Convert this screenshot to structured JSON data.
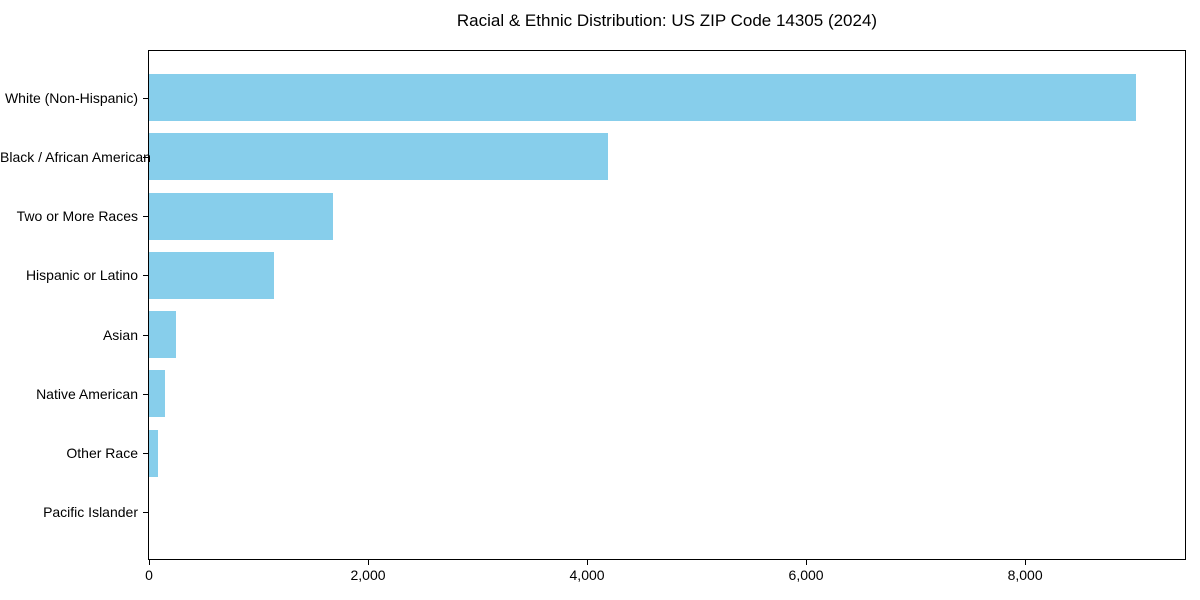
{
  "title": "Racial & Ethnic Distribution: US ZIP Code 14305 (2024)",
  "colors": {
    "bar": "#87CEEB",
    "axis": "#000000",
    "background": "#FFFFFF",
    "text": "#000000"
  },
  "chart_data": {
    "type": "bar",
    "orientation": "horizontal",
    "title": "Racial & Ethnic Distribution: US ZIP Code 14305 (2024)",
    "categories": [
      "White (Non-Hispanic)",
      "Black / African American",
      "Two or More Races",
      "Hispanic or Latino",
      "Asian",
      "Native American",
      "Other Race",
      "Pacific Islander"
    ],
    "values": [
      9010,
      4190,
      1680,
      1140,
      245,
      145,
      80,
      0
    ],
    "xlabel": "",
    "ylabel": "",
    "xlim": [
      0,
      9460
    ],
    "xticks": [
      0,
      2000,
      4000,
      6000,
      8000
    ],
    "xtick_labels": [
      "0",
      "2,000",
      "4,000",
      "6,000",
      "8,000"
    ],
    "grid": false,
    "legend": false,
    "bar_color": "#87CEEB",
    "frame": "full-box"
  }
}
